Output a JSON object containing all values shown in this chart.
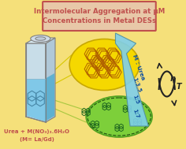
{
  "bg_color": "#f5e07a",
  "title_text": "Intermolecular Aggregation at μM\nConcentrations in Metal DESs",
  "title_box_color": "#e8c8a8",
  "title_border_color": "#c0504d",
  "title_text_color": "#c0504d",
  "bottom_label_line1": "Urea + M(NO₃)₃.6H₂O",
  "bottom_label_line2": "(M= La/Gd)",
  "bottom_label_color": "#c0504d",
  "arrow_label_line1": "M : Urea",
  "arrow_label_lines": [
    "1:3.5",
    "1:5",
    "1:7"
  ],
  "arrow_color": "#7ecfec",
  "yellow_ellipse_color": "#f5d800",
  "yellow_ellipse_edge": "#c8a800",
  "green_ellipse_color": "#7dcf3a",
  "green_ellipse_edge": "#50a020",
  "cuvette_body_color": "#d8e8f0",
  "cuvette_edge_color": "#808080",
  "cuvette_liquid_color": "#80c8e8",
  "pyrene_color_blue": "#4888a8",
  "pyrene_agg_color": "#b06000",
  "pyrene_green_color": "#206820",
  "eta_T_text_eta": "η",
  "eta_T_text_T": "T",
  "eta_color": "#222222",
  "line_connect_color": "#d8c800",
  "line_connect_color2": "#a8c840"
}
